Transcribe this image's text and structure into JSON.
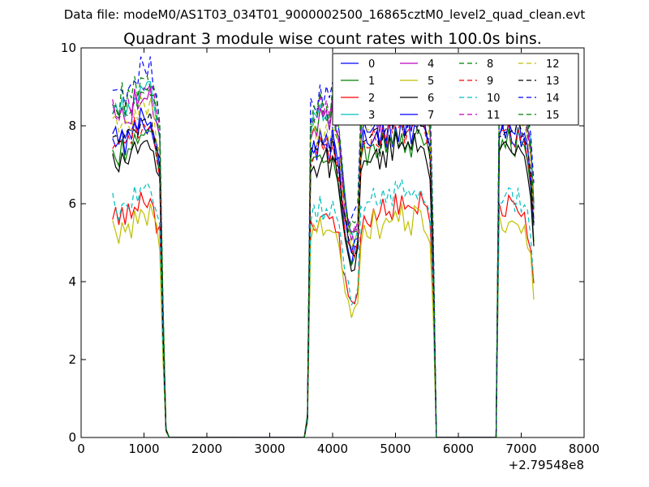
{
  "chart_data": {
    "type": "line",
    "suptitle": "Data file: modeM0/AS1T03_034T01_9000002500_16865cztM0_level2_quad_clean.evt",
    "title": "Quadrant 3 module wise count rates with 100.0s bins.",
    "xlabel": "",
    "ylabel": "",
    "x_offset_label": "+2.79548e8",
    "xlim": [
      0,
      8000
    ],
    "ylim": [
      0,
      10
    ],
    "x_ticks": [
      "0",
      "1000",
      "2000",
      "3000",
      "4000",
      "5000",
      "6000",
      "7000",
      "8000"
    ],
    "y_ticks": [
      "0",
      "2",
      "4",
      "6",
      "8",
      "10"
    ],
    "legend_position": "top-right",
    "legend_columns": 4,
    "x": [
      500,
      550,
      600,
      650,
      700,
      750,
      800,
      850,
      900,
      950,
      1000,
      1050,
      1100,
      1150,
      1200,
      1250,
      1300,
      1350,
      1400,
      1450,
      1500,
      3500,
      3550,
      3600,
      3650,
      3700,
      3750,
      3800,
      3850,
      3900,
      3950,
      4000,
      4050,
      4100,
      4150,
      4200,
      4250,
      4300,
      4350,
      4400,
      4450,
      4500,
      4550,
      4600,
      4650,
      4700,
      4750,
      4800,
      4850,
      4900,
      4950,
      5000,
      5050,
      5100,
      5150,
      5200,
      5250,
      5300,
      5350,
      5400,
      5450,
      5500,
      5550,
      5600,
      5650,
      5700,
      5750,
      5800,
      5850,
      5900,
      6600,
      6650,
      6700,
      6750,
      6800,
      6850,
      6900,
      6950,
      7000,
      7050,
      7100,
      7150,
      7200
    ],
    "base_template": [
      7.6,
      7.5,
      7.3,
      7.7,
      7.4,
      7.6,
      7.5,
      7.9,
      7.7,
      8.0,
      7.8,
      7.9,
      8.0,
      7.7,
      7.3,
      6.9,
      3.0,
      0.2,
      0,
      0,
      0,
      0,
      0,
      0.5,
      7.1,
      7.3,
      7.2,
      7.6,
      7.3,
      7.5,
      7.2,
      7.6,
      7.1,
      6.8,
      6.0,
      5.3,
      4.8,
      4.6,
      4.7,
      4.9,
      7.2,
      7.6,
      7.4,
      7.5,
      7.8,
      7.6,
      7.3,
      7.8,
      7.5,
      7.9,
      7.6,
      8.0,
      7.8,
      8.1,
      7.7,
      8.0,
      7.6,
      8.1,
      7.9,
      8.0,
      7.8,
      7.6,
      7.2,
      4.5,
      0,
      0,
      0,
      0,
      0,
      0,
      0,
      7.6,
      7.8,
      7.7,
      7.9,
      7.7,
      7.6,
      7.9,
      7.5,
      7.6,
      7.1,
      6.6,
      5.3
    ],
    "series": [
      {
        "name": "0",
        "color": "#0000ff",
        "style": "solid",
        "level": 7.65,
        "seed": 1
      },
      {
        "name": "1",
        "color": "#008000",
        "style": "solid",
        "level": 7.45,
        "seed": 2
      },
      {
        "name": "2",
        "color": "#ff0000",
        "style": "solid",
        "level": 5.75,
        "seed": 3
      },
      {
        "name": "3",
        "color": "#00bfbf",
        "style": "solid",
        "level": 8.55,
        "seed": 4
      },
      {
        "name": "4",
        "color": "#bf00bf",
        "style": "solid",
        "level": 8.35,
        "seed": 5
      },
      {
        "name": "5",
        "color": "#bfbf00",
        "style": "solid",
        "level": 5.45,
        "seed": 6
      },
      {
        "name": "6",
        "color": "#000000",
        "style": "solid",
        "level": 7.25,
        "seed": 7
      },
      {
        "name": "7",
        "color": "#0000ff",
        "style": "solid",
        "level": 7.85,
        "seed": 8
      },
      {
        "name": "8",
        "color": "#008000",
        "style": "dashed",
        "level": 8.45,
        "seed": 9
      },
      {
        "name": "9",
        "color": "#ff0000",
        "style": "dashed",
        "level": 7.65,
        "seed": 10
      },
      {
        "name": "10",
        "color": "#00bfbf",
        "style": "dashed",
        "level": 6.05,
        "seed": 11
      },
      {
        "name": "11",
        "color": "#bf00bf",
        "style": "dashed",
        "level": 8.55,
        "seed": 12
      },
      {
        "name": "12",
        "color": "#bfbf00",
        "style": "dashed",
        "level": 8.15,
        "seed": 13
      },
      {
        "name": "13",
        "color": "#000000",
        "style": "dashed",
        "level": 7.75,
        "seed": 14
      },
      {
        "name": "14",
        "color": "#0000ff",
        "style": "dashed",
        "level": 9.05,
        "seed": 15
      },
      {
        "name": "15",
        "color": "#008000",
        "style": "dashed",
        "level": 8.75,
        "seed": 16
      }
    ]
  }
}
